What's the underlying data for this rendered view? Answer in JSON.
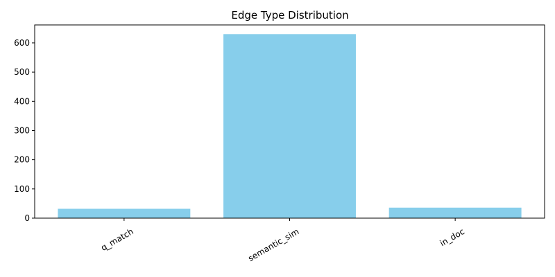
{
  "chart_data": {
    "type": "bar",
    "title": "Edge Type Distribution",
    "xlabel": "",
    "ylabel": "",
    "categories": [
      "q_match",
      "semantic_sim",
      "in_doc"
    ],
    "values": [
      32,
      630,
      36
    ],
    "ylim": [
      0,
      661.5
    ],
    "yticks": [
      0,
      100,
      200,
      300,
      400,
      500,
      600
    ],
    "x_tick_rotation": 30,
    "grid": false,
    "legend": "none",
    "bar_color": "#87ceeb"
  }
}
